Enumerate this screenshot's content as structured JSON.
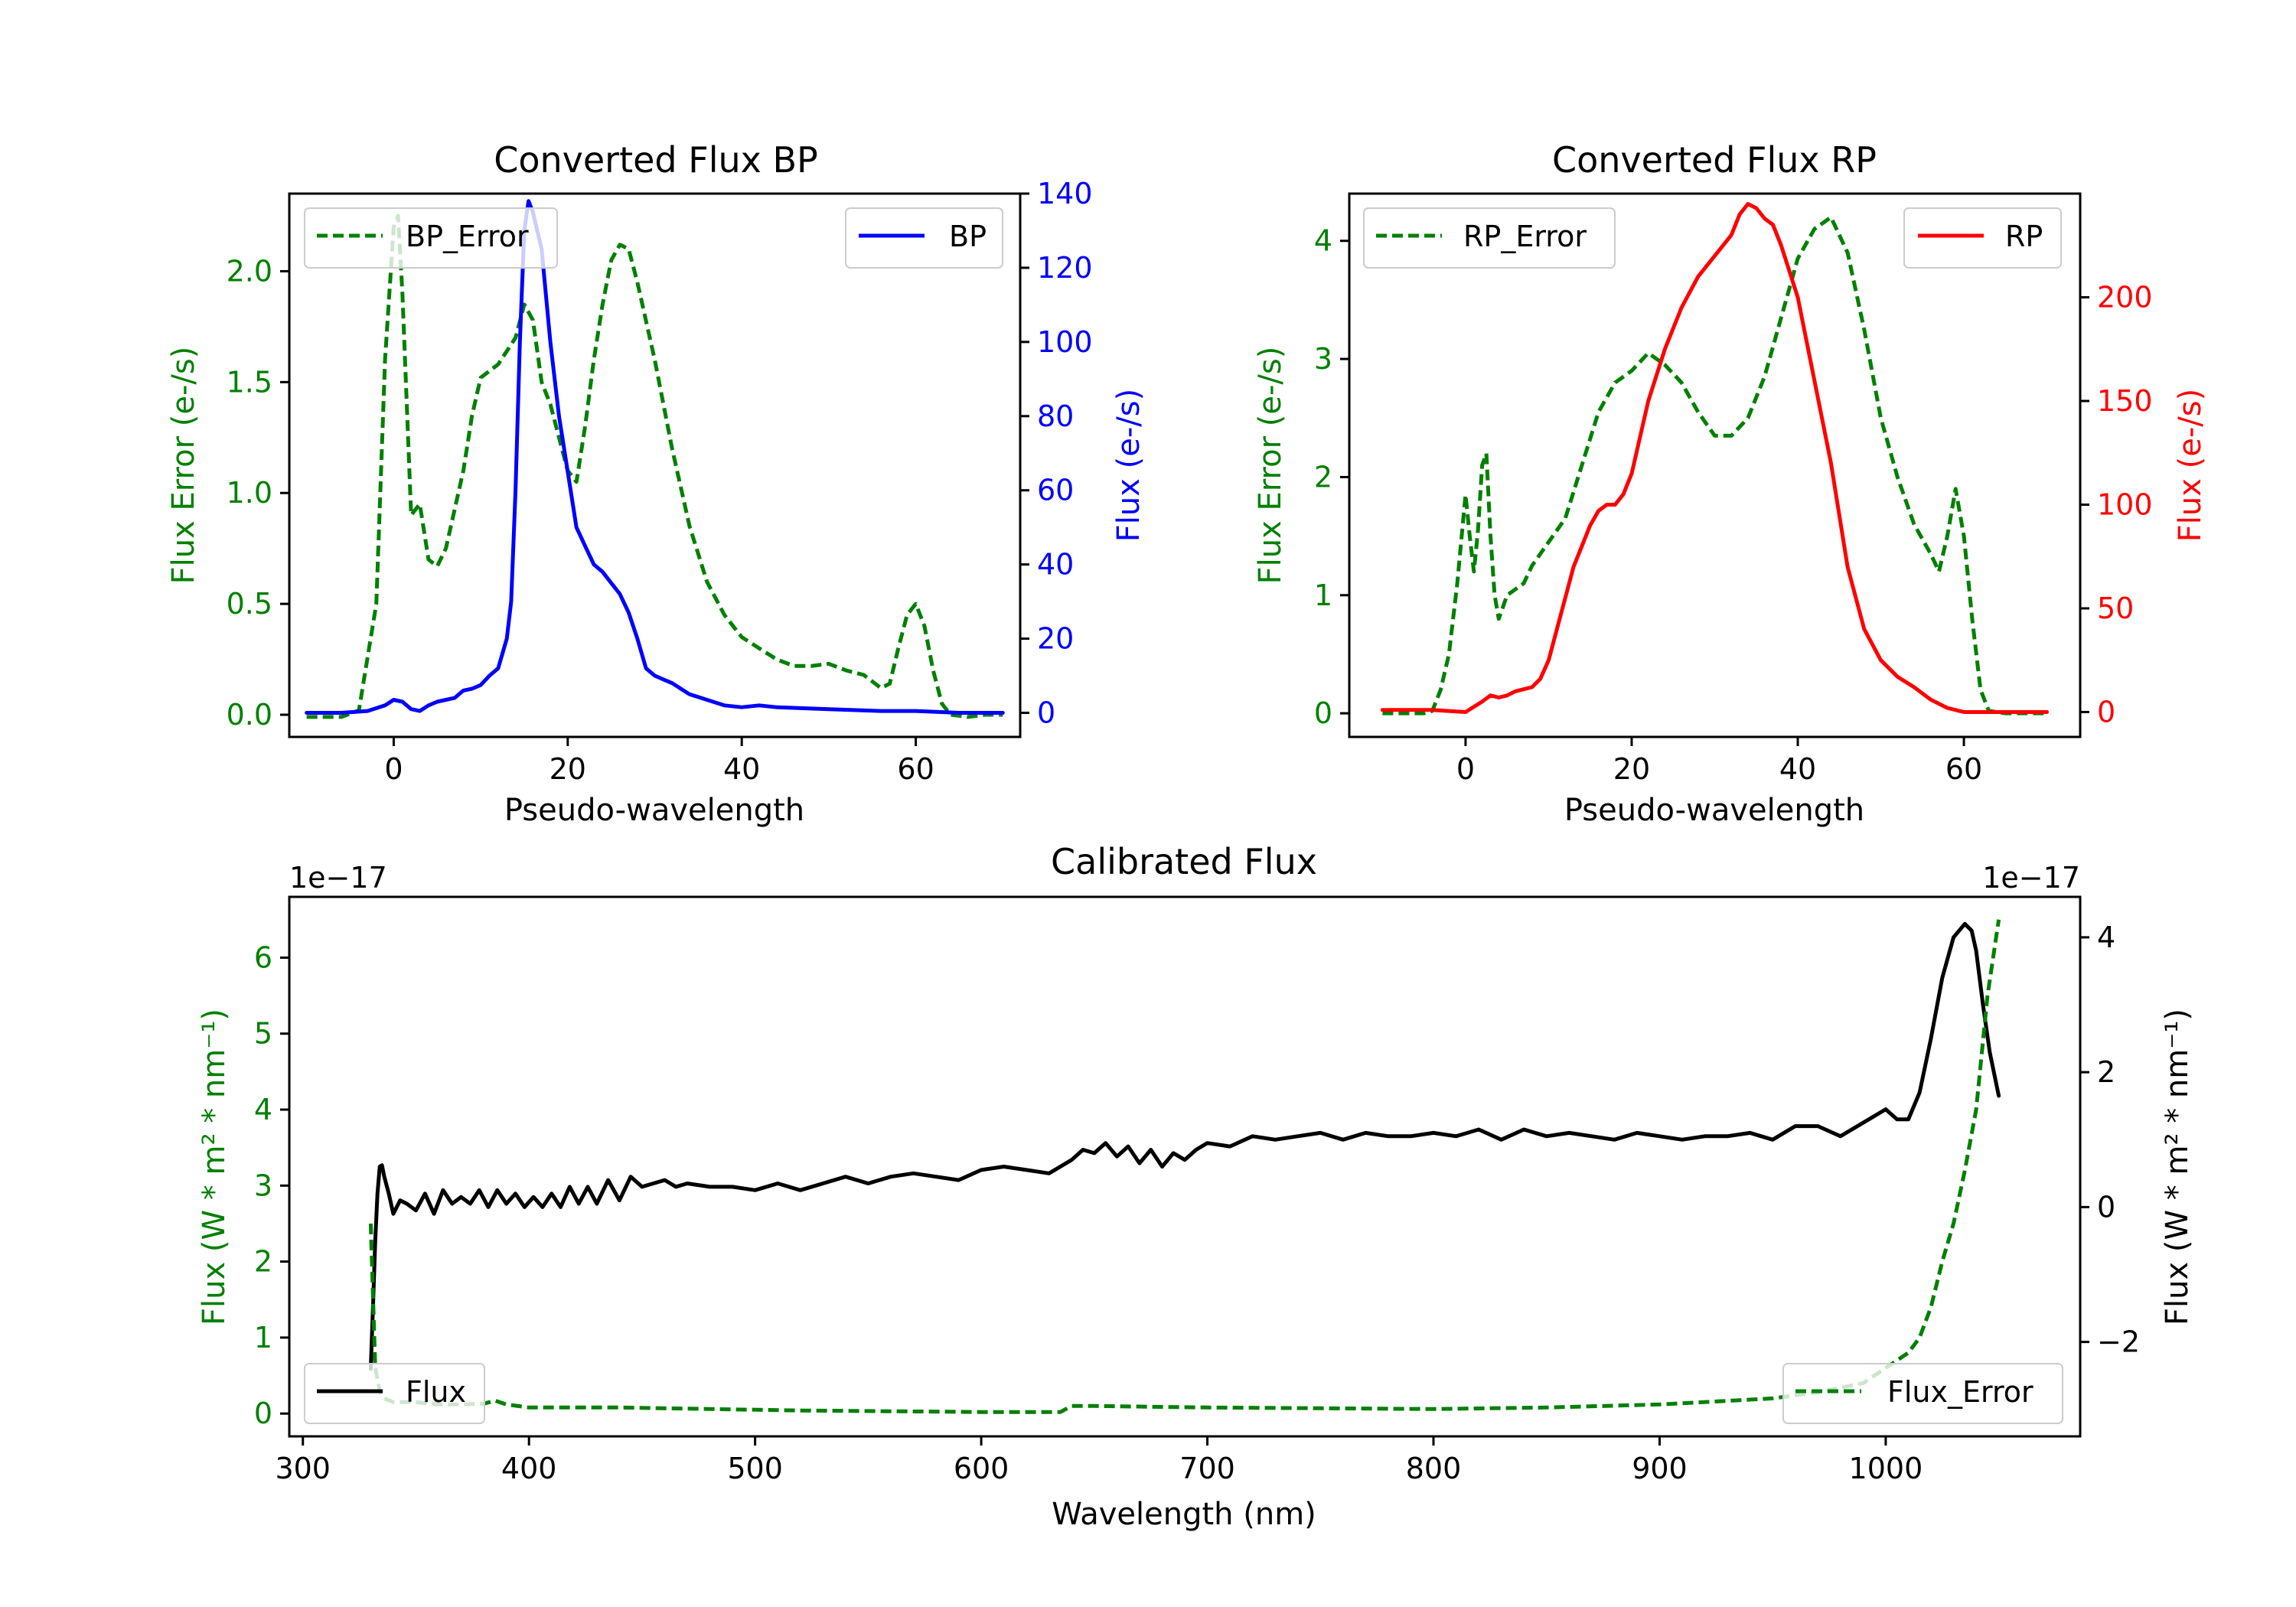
{
  "colors": {
    "error": "#008000",
    "bp": "#0000ff",
    "rp": "#ff0000",
    "flux": "#000000",
    "axis": "#000000"
  },
  "chart_data": [
    {
      "id": "bp",
      "type": "line",
      "title": "Converted Flux BP",
      "xlabel": "Pseudo-wavelength",
      "ylabel_left": "Flux Error (e-/s)",
      "ylabel_right": "Flux (e-/s)",
      "xlim": [
        -12,
        72
      ],
      "ylim_left": [
        -0.1,
        2.35
      ],
      "ylim_right": [
        -6.5,
        140
      ],
      "xticks": [
        0,
        20,
        40,
        60
      ],
      "yticks_left": [
        "0.0",
        "0.5",
        "1.0",
        "1.5",
        "2.0"
      ],
      "yticks_left_values": [
        0,
        0.5,
        1.0,
        1.5,
        2.0
      ],
      "yticks_right": [
        "0",
        "20",
        "40",
        "60",
        "80",
        "100",
        "120",
        "140"
      ],
      "yticks_right_values": [
        0,
        20,
        40,
        60,
        80,
        100,
        120,
        140
      ],
      "legend_left": "BP_Error",
      "legend_right": "BP",
      "series": [
        {
          "name": "BP_Error",
          "axis": "left",
          "style": "dashed",
          "x": [
            -10,
            -6,
            -4,
            -2,
            -1,
            0,
            0.5,
            1,
            2,
            3,
            4,
            5,
            6,
            8,
            9,
            10,
            12,
            14,
            15,
            16,
            17,
            18,
            19,
            20,
            21,
            22,
            23,
            24,
            25,
            26,
            27,
            28,
            30,
            32,
            34,
            36,
            38,
            40,
            42,
            44,
            46,
            48,
            50,
            52,
            54,
            56,
            57,
            58,
            59,
            60,
            61,
            62,
            63,
            64,
            66,
            68,
            70
          ],
          "y": [
            -0.01,
            -0.01,
            0.02,
            0.5,
            1.6,
            2.2,
            2.25,
            1.9,
            0.9,
            0.95,
            0.7,
            0.67,
            0.75,
            1.1,
            1.35,
            1.52,
            1.58,
            1.7,
            1.85,
            1.78,
            1.5,
            1.4,
            1.25,
            1.1,
            1.05,
            1.3,
            1.6,
            1.85,
            2.05,
            2.12,
            2.1,
            1.95,
            1.6,
            1.2,
            0.85,
            0.6,
            0.45,
            0.35,
            0.3,
            0.25,
            0.22,
            0.22,
            0.23,
            0.2,
            0.18,
            0.12,
            0.14,
            0.3,
            0.45,
            0.5,
            0.4,
            0.2,
            0.05,
            0.0,
            -0.01,
            0.0,
            0.0
          ]
        },
        {
          "name": "BP",
          "axis": "right",
          "style": "solid",
          "x": [
            -10,
            -6,
            -3,
            -1,
            0,
            1,
            2,
            3,
            4,
            5,
            6,
            7,
            8,
            9,
            10,
            11,
            12,
            13,
            13.5,
            14,
            14.5,
            15,
            15.5,
            16,
            17,
            18,
            19,
            20,
            21,
            22,
            23,
            24,
            25,
            26,
            27,
            28,
            29,
            30,
            31,
            32,
            34,
            36,
            38,
            40,
            42,
            44,
            50,
            56,
            60,
            65,
            70
          ],
          "y": [
            0,
            0,
            0.5,
            2,
            3.5,
            3,
            1,
            0.5,
            2,
            3,
            3.5,
            4,
            6,
            6.5,
            7.5,
            10,
            12,
            20,
            30,
            60,
            100,
            130,
            138,
            135,
            125,
            100,
            80,
            65,
            50,
            45,
            40,
            38,
            35,
            32,
            27,
            20,
            12,
            10,
            9,
            8,
            5,
            3.5,
            2,
            1.5,
            2,
            1.5,
            1,
            0.5,
            0.5,
            0,
            0
          ]
        }
      ]
    },
    {
      "id": "rp",
      "type": "line",
      "title": "Converted Flux RP",
      "xlabel": "Pseudo-wavelength",
      "ylabel_left": "Flux Error (e-/s)",
      "ylabel_right": "Flux (e-/s)",
      "xlim": [
        -14,
        74
      ],
      "ylim_left": [
        -0.2,
        4.4
      ],
      "ylim_right": [
        -12,
        250
      ],
      "xticks": [
        0,
        20,
        40,
        60
      ],
      "yticks_left": [
        "0",
        "1",
        "2",
        "3",
        "4"
      ],
      "yticks_left_values": [
        0,
        1,
        2,
        3,
        4
      ],
      "yticks_right": [
        "0",
        "50",
        "100",
        "150",
        "200"
      ],
      "yticks_right_values": [
        0,
        50,
        100,
        150,
        200
      ],
      "legend_left": "RP_Error",
      "legend_right": "RP",
      "series": [
        {
          "name": "RP_Error",
          "axis": "left",
          "style": "dashed",
          "x": [
            -10,
            -5,
            -4,
            -3,
            -2,
            -1,
            0,
            0.5,
            1,
            1.5,
            2,
            2.5,
            3,
            3.5,
            4,
            5,
            6,
            7,
            8,
            9,
            10,
            12,
            14,
            16,
            18,
            20,
            22,
            24,
            26,
            28,
            30,
            32,
            34,
            36,
            38,
            40,
            42,
            44,
            46,
            48,
            50,
            52,
            54,
            56,
            57,
            58,
            59,
            60,
            61,
            62,
            63,
            65,
            70
          ],
          "y": [
            0,
            0,
            0.02,
            0.2,
            0.5,
            1.1,
            1.85,
            1.5,
            1.2,
            1.55,
            2.1,
            2.2,
            1.5,
            1.0,
            0.8,
            1.0,
            1.05,
            1.1,
            1.25,
            1.35,
            1.45,
            1.65,
            2.1,
            2.55,
            2.8,
            2.9,
            3.05,
            2.95,
            2.8,
            2.55,
            2.35,
            2.35,
            2.5,
            2.85,
            3.35,
            3.85,
            4.1,
            4.2,
            3.9,
            3.25,
            2.5,
            2.0,
            1.6,
            1.35,
            1.2,
            1.5,
            1.9,
            1.5,
            0.8,
            0.2,
            0.02,
            0,
            0
          ]
        },
        {
          "name": "RP",
          "axis": "right",
          "style": "solid",
          "x": [
            -10,
            -4,
            0,
            2,
            3,
            4,
            5,
            6,
            7,
            8,
            9,
            10,
            11,
            12,
            13,
            14,
            15,
            16,
            17,
            18,
            19,
            20,
            22,
            24,
            26,
            28,
            30,
            32,
            33,
            34,
            35,
            36,
            37,
            38,
            40,
            42,
            44,
            46,
            48,
            50,
            52,
            54,
            56,
            58,
            60,
            65,
            70
          ],
          "y": [
            1,
            1,
            0,
            5,
            8,
            7,
            8,
            10,
            11,
            12,
            16,
            25,
            40,
            55,
            70,
            80,
            90,
            97,
            100,
            100,
            105,
            115,
            150,
            175,
            195,
            210,
            220,
            230,
            240,
            245,
            243,
            238,
            235,
            225,
            200,
            160,
            120,
            70,
            40,
            25,
            17,
            12,
            6,
            2,
            0,
            0,
            0
          ]
        }
      ]
    },
    {
      "id": "calibrated",
      "type": "line",
      "title": "Calibrated Flux",
      "xlabel": "Wavelength (nm)",
      "ylabel_left": "Flux (W * m² * nm⁻¹)",
      "ylabel_right": "Flux (W * m² * nm⁻¹)",
      "offset_left": "1e−17",
      "offset_right": "1e−17",
      "xlim": [
        294,
        1086
      ],
      "ylim_left": [
        -0.3,
        6.8
      ],
      "ylim_right": [
        -3.4,
        4.6
      ],
      "xticks": [
        300,
        400,
        500,
        600,
        700,
        800,
        900,
        1000
      ],
      "yticks_left": [
        "0",
        "1",
        "2",
        "3",
        "4",
        "5",
        "6"
      ],
      "yticks_left_values": [
        0,
        1,
        2,
        3,
        4,
        5,
        6
      ],
      "yticks_right": [
        "−2",
        "0",
        "2",
        "4"
      ],
      "yticks_right_values": [
        -2,
        0,
        2,
        4
      ],
      "legend_left": "Flux",
      "legend_right": "Flux_Error",
      "series": [
        {
          "name": "Flux",
          "axis": "right",
          "style": "solid",
          "x": [
            330,
            331,
            332,
            333,
            334,
            335,
            336,
            338,
            340,
            343,
            346,
            350,
            354,
            358,
            362,
            366,
            370,
            374,
            378,
            382,
            386,
            390,
            394,
            398,
            402,
            406,
            410,
            414,
            418,
            422,
            426,
            430,
            435,
            440,
            445,
            450,
            455,
            460,
            465,
            470,
            480,
            490,
            500,
            510,
            520,
            530,
            540,
            550,
            560,
            570,
            580,
            590,
            600,
            610,
            620,
            630,
            640,
            645,
            650,
            655,
            660,
            665,
            670,
            675,
            680,
            685,
            690,
            695,
            700,
            710,
            720,
            730,
            740,
            750,
            760,
            770,
            780,
            790,
            800,
            810,
            820,
            830,
            840,
            850,
            860,
            870,
            880,
            890,
            900,
            910,
            920,
            930,
            940,
            950,
            960,
            970,
            980,
            990,
            1000,
            1005,
            1010,
            1015,
            1020,
            1025,
            1030,
            1035,
            1038,
            1040,
            1043,
            1046,
            1050
          ],
          "y": [
            -2.4,
            -1.5,
            -0.5,
            0.2,
            0.6,
            0.62,
            0.45,
            0.2,
            -0.1,
            0.1,
            0.05,
            -0.05,
            0.2,
            -0.1,
            0.25,
            0.05,
            0.15,
            0.05,
            0.25,
            0.0,
            0.25,
            0.05,
            0.2,
            0.0,
            0.15,
            0.0,
            0.2,
            0.0,
            0.3,
            0.05,
            0.3,
            0.05,
            0.4,
            0.1,
            0.45,
            0.3,
            0.35,
            0.4,
            0.3,
            0.35,
            0.3,
            0.3,
            0.25,
            0.35,
            0.25,
            0.35,
            0.45,
            0.35,
            0.45,
            0.5,
            0.45,
            0.4,
            0.55,
            0.6,
            0.55,
            0.5,
            0.7,
            0.85,
            0.8,
            0.95,
            0.75,
            0.9,
            0.65,
            0.85,
            0.6,
            0.8,
            0.7,
            0.85,
            0.95,
            0.9,
            1.05,
            1.0,
            1.05,
            1.1,
            1.0,
            1.1,
            1.05,
            1.05,
            1.1,
            1.05,
            1.15,
            1.0,
            1.15,
            1.05,
            1.1,
            1.05,
            1.0,
            1.1,
            1.05,
            1.0,
            1.05,
            1.05,
            1.1,
            1.0,
            1.2,
            1.2,
            1.05,
            1.25,
            1.45,
            1.3,
            1.3,
            1.7,
            2.5,
            3.4,
            4.0,
            4.2,
            4.1,
            3.8,
            3.0,
            2.3,
            1.65
          ]
        },
        {
          "name": "Flux_Error",
          "axis": "left",
          "style": "dashed",
          "x": [
            330,
            332,
            334,
            336,
            340,
            350,
            360,
            370,
            380,
            385,
            390,
            400,
            420,
            440,
            480,
            520,
            560,
            600,
            620,
            635,
            640,
            650,
            700,
            750,
            800,
            850,
            900,
            950,
            970,
            990,
            1000,
            1010,
            1015,
            1020,
            1025,
            1030,
            1035,
            1040,
            1045,
            1050
          ],
          "y": [
            2.5,
            0.6,
            0.3,
            0.2,
            0.15,
            0.15,
            0.12,
            0.12,
            0.13,
            0.17,
            0.12,
            0.08,
            0.08,
            0.08,
            0.06,
            0.04,
            0.03,
            0.02,
            0.02,
            0.02,
            0.1,
            0.1,
            0.08,
            0.07,
            0.06,
            0.08,
            0.12,
            0.2,
            0.28,
            0.4,
            0.6,
            0.8,
            1.0,
            1.4,
            2.0,
            2.5,
            3.2,
            4.0,
            5.5,
            6.5
          ]
        }
      ]
    }
  ]
}
